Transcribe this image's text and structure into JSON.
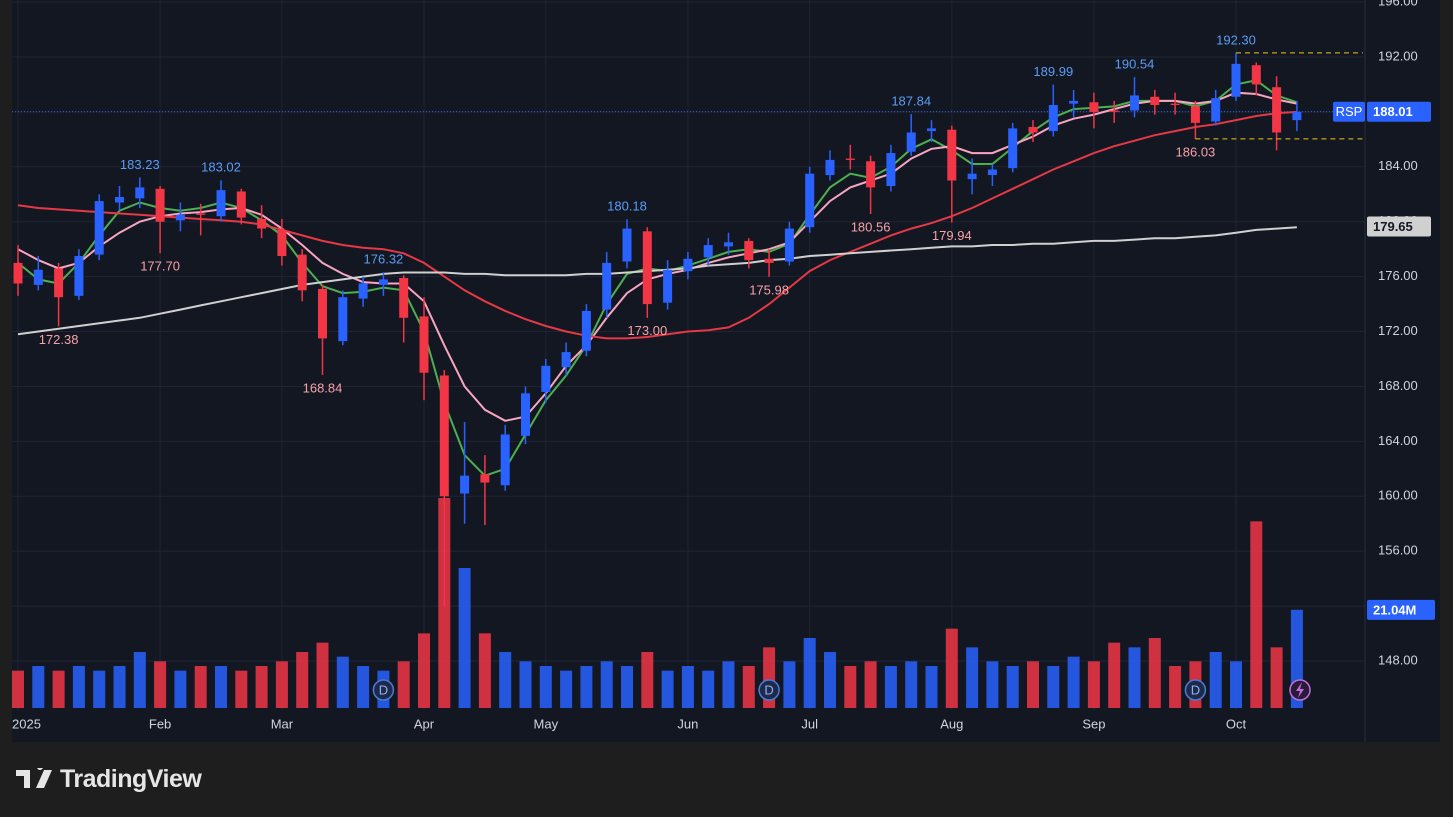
{
  "chart_data": {
    "type": "candlestick",
    "symbol": "RSP",
    "categories": [
      "2025",
      null,
      null,
      null,
      null,
      null,
      null,
      "Feb",
      null,
      null,
      null,
      null,
      null,
      "Mar",
      null,
      null,
      null,
      null,
      null,
      null,
      "Apr",
      null,
      null,
      null,
      null,
      null,
      "May",
      null,
      null,
      null,
      null,
      null,
      null,
      "Jun",
      null,
      null,
      null,
      null,
      null,
      "Jul",
      null,
      null,
      null,
      null,
      null,
      null,
      "Aug",
      null,
      null,
      null,
      null,
      null,
      null,
      "Sep",
      null,
      null,
      null,
      null,
      null,
      null,
      "Oct",
      null,
      null,
      null
    ],
    "open": [
      177.0,
      175.4,
      176.6,
      174.6,
      177.6,
      181.4,
      181.7,
      182.4,
      180.1,
      180.6,
      180.4,
      182.2,
      180.2,
      179.4,
      177.6,
      175.1,
      171.3,
      174.4,
      175.4,
      175.9,
      173.1,
      168.8,
      160.2,
      161.6,
      160.8,
      164.4,
      167.6,
      169.4,
      170.6,
      173.6,
      177.1,
      179.3,
      174.1,
      176.4,
      177.4,
      178.2,
      178.6,
      177.3,
      177.1,
      179.6,
      183.4,
      184.6,
      184.4,
      182.6,
      185.1,
      186.6,
      186.7,
      183.1,
      183.4,
      183.9,
      186.9,
      186.6,
      188.6,
      188.7,
      188.1,
      188.1,
      189.1,
      188.6,
      188.4,
      187.3,
      189.1,
      191.4,
      189.8,
      187.4
    ],
    "high": [
      178.3,
      177.5,
      177.0,
      178.0,
      182.0,
      182.6,
      183.23,
      182.6,
      181.4,
      181.3,
      183.02,
      182.4,
      181.2,
      180.2,
      178.0,
      175.4,
      175.0,
      176.0,
      176.32,
      176.1,
      174.5,
      169.2,
      165.4,
      163.0,
      165.2,
      168.0,
      170.0,
      171.2,
      174.0,
      177.8,
      180.18,
      179.6,
      177.2,
      177.8,
      178.8,
      179.2,
      178.8,
      178.0,
      180.0,
      184.0,
      185.2,
      185.6,
      184.8,
      185.6,
      187.84,
      187.4,
      187.0,
      184.6,
      184.2,
      187.2,
      187.4,
      189.99,
      189.6,
      189.4,
      188.8,
      190.54,
      189.6,
      189.4,
      188.8,
      189.6,
      192.3,
      191.6,
      190.6,
      188.8
    ],
    "low": [
      174.6,
      175.0,
      172.38,
      174.3,
      177.2,
      180.8,
      181.0,
      177.7,
      179.3,
      179.0,
      180.0,
      179.8,
      178.8,
      176.8,
      174.2,
      168.84,
      171.0,
      173.8,
      174.6,
      171.2,
      167.0,
      152.0,
      158.0,
      157.9,
      160.4,
      163.8,
      166.8,
      168.8,
      170.2,
      173.0,
      176.6,
      173.0,
      173.6,
      175.8,
      176.8,
      177.6,
      176.6,
      175.98,
      176.8,
      179.2,
      183.0,
      183.8,
      180.56,
      182.2,
      184.8,
      185.8,
      179.94,
      182.0,
      182.6,
      183.6,
      185.8,
      186.2,
      187.6,
      186.8,
      187.2,
      187.6,
      187.8,
      187.8,
      186.03,
      187.0,
      188.8,
      189.2,
      185.2,
      186.6
    ],
    "close": [
      175.5,
      176.5,
      174.5,
      177.5,
      181.5,
      181.8,
      182.5,
      180.0,
      180.5,
      180.5,
      182.3,
      180.3,
      179.5,
      177.5,
      175.0,
      171.5,
      174.5,
      175.5,
      175.8,
      173.0,
      169.0,
      160.0,
      161.5,
      161.0,
      164.5,
      167.5,
      169.5,
      170.5,
      173.5,
      177.0,
      179.5,
      174.0,
      176.5,
      177.3,
      178.3,
      178.5,
      177.2,
      177.0,
      179.5,
      183.5,
      184.5,
      184.5,
      182.5,
      185.0,
      186.5,
      186.8,
      183.0,
      183.5,
      183.8,
      186.8,
      186.5,
      188.5,
      188.8,
      188.0,
      188.0,
      189.2,
      188.5,
      188.5,
      187.2,
      189.0,
      191.5,
      190.0,
      186.5,
      188.01
    ],
    "volume": [
      8,
      9,
      8,
      9,
      8,
      9,
      12,
      10,
      8,
      9,
      9,
      8,
      9,
      10,
      12,
      14,
      11,
      9,
      8,
      10,
      16,
      45,
      30,
      16,
      12,
      10,
      9,
      8,
      9,
      10,
      9,
      12,
      8,
      9,
      8,
      10,
      9,
      13,
      10,
      15,
      12,
      9,
      10,
      9,
      10,
      9,
      17,
      13,
      10,
      9,
      10,
      9,
      11,
      10,
      14,
      13,
      15,
      9,
      10,
      12,
      10,
      40,
      13,
      21.04
    ],
    "volume_label": {
      "value": 21.04,
      "label": "21.04M"
    },
    "vlim": [
      0,
      60
    ],
    "up_color": "#2962ff",
    "down_color": "#f23645",
    "ma": [
      {
        "color": "#4caf50",
        "values": [
          177.0,
          175.8,
          175.5,
          177.0,
          179.0,
          180.8,
          181.4,
          181.0,
          180.8,
          181.0,
          181.4,
          181.0,
          180.1,
          179.0,
          177.0,
          175.3,
          174.8,
          174.9,
          175.2,
          175.0,
          172.0,
          166.8,
          163.0,
          161.5,
          162.0,
          164.5,
          167.0,
          168.8,
          171.0,
          174.0,
          176.2,
          176.6,
          176.4,
          176.8,
          177.3,
          177.8,
          178.0,
          177.8,
          178.4,
          180.5,
          182.5,
          183.5,
          183.2,
          184.0,
          185.3,
          186.0,
          185.2,
          184.2,
          184.2,
          185.4,
          186.6,
          187.6,
          188.2,
          188.3,
          188.4,
          188.8,
          188.8,
          188.8,
          188.4,
          188.8,
          190.0,
          190.3,
          189.2,
          188.7
        ]
      },
      {
        "color": "#f8a5c2",
        "values": [
          178.0,
          177.2,
          176.6,
          177.0,
          178.2,
          179.2,
          180.0,
          180.4,
          180.6,
          180.7,
          180.9,
          181.0,
          180.5,
          179.5,
          178.3,
          177.0,
          176.2,
          175.6,
          175.5,
          175.5,
          174.2,
          171.0,
          168.0,
          166.3,
          165.5,
          165.8,
          167.5,
          169.5,
          171.0,
          173.0,
          174.8,
          175.8,
          176.2,
          176.5,
          177.0,
          177.4,
          177.7,
          178.0,
          178.5,
          180.0,
          181.5,
          182.5,
          183.0,
          183.5,
          184.6,
          185.3,
          185.5,
          185.0,
          185.0,
          185.6,
          186.2,
          187.0,
          187.5,
          187.8,
          188.2,
          188.6,
          188.8,
          188.8,
          188.6,
          188.8,
          189.4,
          189.3,
          188.9,
          188.6
        ]
      },
      {
        "color": "#e53945",
        "values": [
          181.2,
          181.0,
          180.9,
          180.8,
          180.7,
          180.6,
          180.5,
          180.4,
          180.3,
          180.2,
          180.1,
          180.0,
          179.8,
          179.4,
          179.0,
          178.6,
          178.3,
          178.1,
          178.0,
          177.7,
          177.0,
          176.0,
          175.0,
          174.2,
          173.5,
          172.9,
          172.4,
          172.0,
          171.7,
          171.5,
          171.5,
          171.6,
          171.8,
          172.0,
          172.1,
          172.3,
          173.0,
          174.0,
          175.2,
          176.4,
          177.2,
          177.8,
          178.4,
          179.0,
          179.5,
          179.9,
          180.4,
          181.0,
          181.7,
          182.4,
          183.1,
          183.8,
          184.4,
          185.0,
          185.5,
          185.9,
          186.3,
          186.6,
          186.9,
          187.1,
          187.4,
          187.7,
          187.9,
          188.0
        ]
      },
      {
        "color": "#d0d0d0",
        "values": [
          171.8,
          172.0,
          172.2,
          172.4,
          172.6,
          172.8,
          173.0,
          173.3,
          173.6,
          173.9,
          174.2,
          174.5,
          174.8,
          175.1,
          175.4,
          175.6,
          175.8,
          176.0,
          176.2,
          176.3,
          176.3,
          176.3,
          176.2,
          176.2,
          176.1,
          176.1,
          176.1,
          176.1,
          176.2,
          176.2,
          176.3,
          176.4,
          176.5,
          176.6,
          176.8,
          176.9,
          177.0,
          177.2,
          177.3,
          177.5,
          177.6,
          177.7,
          177.8,
          177.9,
          178.0,
          178.1,
          178.2,
          178.2,
          178.3,
          178.3,
          178.4,
          178.4,
          178.5,
          178.6,
          178.6,
          178.7,
          178.8,
          178.8,
          178.9,
          179.0,
          179.2,
          179.4,
          179.5,
          179.6
        ]
      }
    ],
    "ma_label": {
      "value": 179.65,
      "label": "179.65"
    },
    "ylim": [
      142.1,
      196.15
    ],
    "yticks": [
      {
        "value": 148,
        "label": "148.00"
      },
      {
        "value": 152,
        "label": "152.00"
      },
      {
        "value": 156,
        "label": "156.00"
      },
      {
        "value": 160,
        "label": "160.00"
      },
      {
        "value": 164,
        "label": "164.00"
      },
      {
        "value": 168,
        "label": "168.00"
      },
      {
        "value": 172,
        "label": "172.00"
      },
      {
        "value": 176,
        "label": "176.00"
      },
      {
        "value": 180,
        "label": "180.00"
      },
      {
        "value": 184,
        "label": "184.00"
      },
      {
        "value": 188,
        "label": "188.00"
      },
      {
        "value": 192,
        "label": "192.00"
      },
      {
        "value": 196,
        "label": "196.00"
      }
    ],
    "grid": true,
    "high_labels": [
      {
        "index": 6,
        "value": 183.23,
        "label": "183.23"
      },
      {
        "index": 10,
        "value": 183.02,
        "label": "183.02"
      },
      {
        "index": 18,
        "value": 176.32,
        "label": "176.32"
      },
      {
        "index": 30,
        "value": 180.18,
        "label": "180.18"
      },
      {
        "index": 44,
        "value": 187.84,
        "label": "187.84"
      },
      {
        "index": 51,
        "value": 189.99,
        "label": "189.99"
      },
      {
        "index": 55,
        "value": 190.54,
        "label": "190.54"
      },
      {
        "index": 60,
        "value": 192.3,
        "label": "192.30"
      }
    ],
    "low_labels": [
      {
        "index": 2,
        "value": 172.38,
        "label": "172.38"
      },
      {
        "index": 7,
        "value": 177.7,
        "label": "177.70"
      },
      {
        "index": 15,
        "value": 168.84,
        "label": "168.84"
      },
      {
        "index": 31,
        "value": 173.0,
        "label": "173.00"
      },
      {
        "index": 37,
        "value": 175.98,
        "label": "175.98"
      },
      {
        "index": 42,
        "value": 180.56,
        "label": "180.56"
      },
      {
        "index": 46,
        "value": 179.94,
        "label": "179.94"
      },
      {
        "index": 58,
        "value": 186.03,
        "label": "186.03"
      }
    ],
    "dividend_markers": {
      "label": "D",
      "indices": [
        18,
        37,
        58
      ]
    }
  },
  "branding": "TradingView"
}
